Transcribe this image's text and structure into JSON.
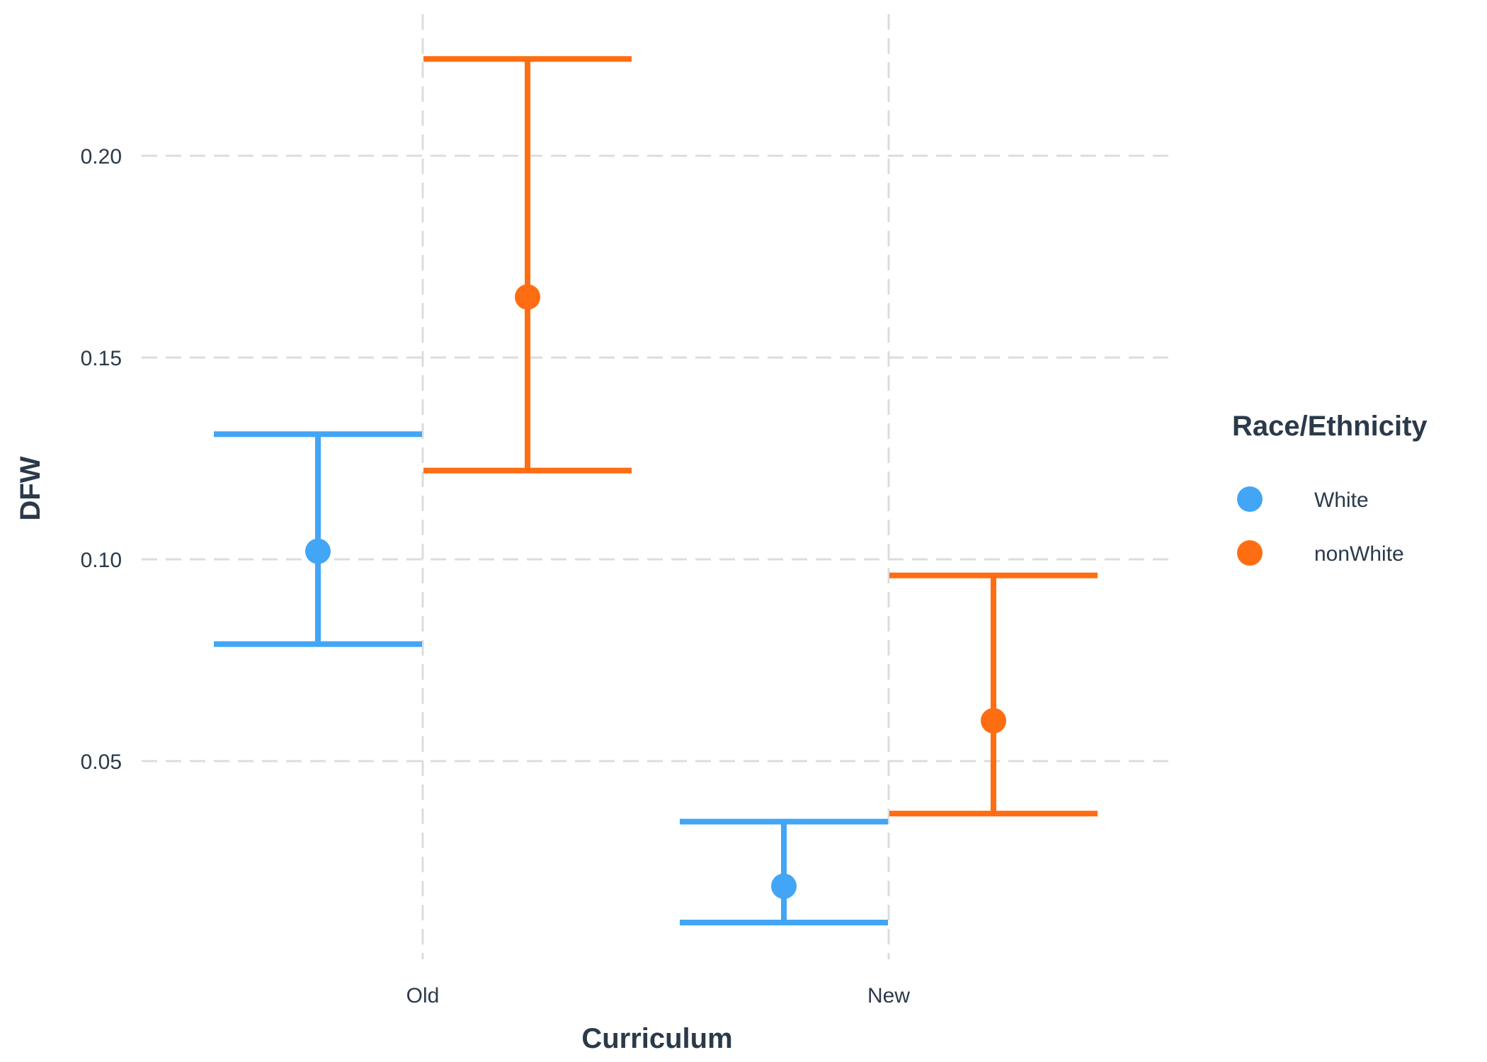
{
  "chart_data": {
    "type": "errorbar",
    "xlabel": "Curriculum",
    "ylabel": "DFW",
    "categories": [
      "Old",
      "New"
    ],
    "ylim": [
      0.0,
      0.24
    ],
    "yticks": [
      0.05,
      0.1,
      0.15,
      0.2
    ],
    "ytick_labels": [
      "0.05",
      "0.10",
      "0.15",
      "0.20"
    ],
    "grid": true,
    "legend": {
      "title": "Race/Ethnicity",
      "placement": "right"
    },
    "series": [
      {
        "name": "White",
        "color": "#42a5f5",
        "points": [
          {
            "category": "Old",
            "value": 0.102,
            "lower": 0.079,
            "upper": 0.131
          },
          {
            "category": "New",
            "value": 0.019,
            "lower": 0.01,
            "upper": 0.035
          }
        ]
      },
      {
        "name": "nonWhite",
        "color": "#ff6d12",
        "points": [
          {
            "category": "Old",
            "value": 0.165,
            "lower": 0.122,
            "upper": 0.224
          },
          {
            "category": "New",
            "value": 0.06,
            "lower": 0.037,
            "upper": 0.096
          }
        ]
      }
    ]
  }
}
